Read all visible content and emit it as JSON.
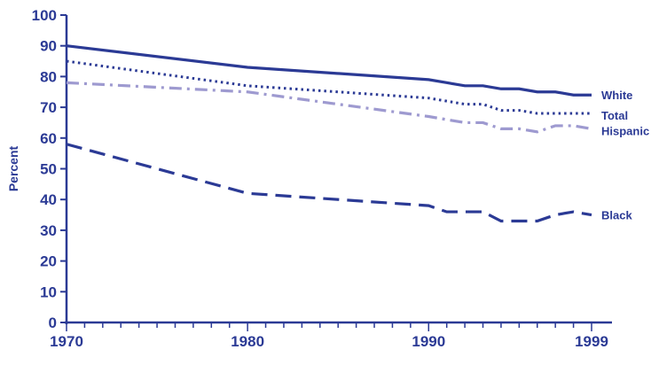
{
  "chart_data": {
    "type": "line",
    "title": "",
    "xlabel": "",
    "ylabel": "Percent",
    "xlim": [
      1970,
      1999
    ],
    "ylim": [
      0,
      100
    ],
    "y_ticks": [
      0,
      10,
      20,
      30,
      40,
      50,
      60,
      70,
      80,
      90,
      100
    ],
    "x_tick_labels": [
      1970,
      1980,
      1990,
      1999
    ],
    "grid": false,
    "legend": "inline labels at right end of lines",
    "x": [
      1970,
      1980,
      1990,
      1991,
      1992,
      1993,
      1994,
      1995,
      1996,
      1997,
      1998,
      1999
    ],
    "series": [
      {
        "name": "White",
        "style": "solid",
        "color": "#2b3a95",
        "values": [
          90,
          83,
          79,
          78,
          77,
          77,
          76,
          76,
          75,
          75,
          74,
          74
        ]
      },
      {
        "name": "Total",
        "style": "dotted",
        "color": "#2b3a95",
        "values": [
          85,
          77,
          73,
          72,
          71,
          71,
          69,
          69,
          68,
          68,
          68,
          68
        ]
      },
      {
        "name": "Hispanic",
        "style": "dashdot",
        "color": "#9e9ad0",
        "values": [
          78,
          75,
          67,
          66,
          65,
          65,
          63,
          63,
          62,
          64,
          64,
          63
        ]
      },
      {
        "name": "Black",
        "style": "dashed",
        "color": "#2b3a95",
        "values": [
          58,
          42,
          38,
          36,
          36,
          36,
          33,
          33,
          33,
          35,
          36,
          35
        ]
      }
    ]
  }
}
